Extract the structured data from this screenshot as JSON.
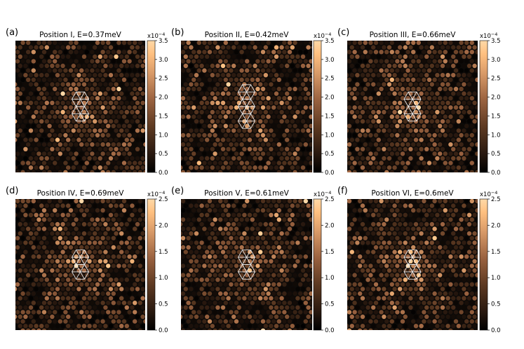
{
  "figure_title": "",
  "colorbar_multiplier": "x10",
  "colorbar_exponent": "−4",
  "colors": {
    "background": "#ffffff",
    "map_dark": "#0d0a08",
    "colormap": [
      "#000000",
      "#2b1a10",
      "#5e3a22",
      "#9a6240",
      "#d89a68",
      "#ffc080",
      "#ffd9a8"
    ]
  },
  "chart_data": [
    {
      "type": "heatmap",
      "panel_label": "(a)",
      "title": "Position I,  E=0.37meV",
      "zlim": [
        0.0,
        3.5
      ],
      "colorbar_ticks": [
        "0.0",
        "0.5",
        "1.0",
        "1.5",
        "2.0",
        "2.5",
        "3.0",
        "3.5"
      ],
      "pattern": "hexagonal lattice LDOS, bright six-fold star around center",
      "overlay": "hexagon-triangle stack (2 cells)"
    },
    {
      "type": "heatmap",
      "panel_label": "(b)",
      "title": "Position II,  E=0.42meV",
      "zlim": [
        0.0,
        3.5
      ],
      "colorbar_ticks": [
        "0.0",
        "0.5",
        "1.0",
        "1.5",
        "2.0",
        "2.5",
        "3.0",
        "3.5"
      ],
      "pattern": "hexagonal lattice LDOS, bright center",
      "overlay": "hexagon-triangle stack (3 cells)"
    },
    {
      "type": "heatmap",
      "panel_label": "(c)",
      "title": "Position III,  E=0.66meV",
      "zlim": [
        0.0,
        3.5
      ],
      "colorbar_ticks": [
        "0.0",
        "0.5",
        "1.0",
        "1.5",
        "2.0",
        "2.5",
        "3.0",
        "3.5"
      ],
      "pattern": "hexagonal lattice LDOS, bright center",
      "overlay": "hexagon-triangle stack (2 cells)"
    },
    {
      "type": "heatmap",
      "panel_label": "(d)",
      "title": "Position IV,  E=0.69meV",
      "zlim": [
        0.0,
        2.5
      ],
      "colorbar_ticks": [
        "0.0",
        "0.5",
        "1.0",
        "1.5",
        "2.0",
        "2.5"
      ],
      "pattern": "hexagonal lattice LDOS, bright center",
      "overlay": "hexagon-triangle stack (2 cells)"
    },
    {
      "type": "heatmap",
      "panel_label": "(e)",
      "title": "Position V,  E=0.61meV",
      "zlim": [
        0.0,
        2.5
      ],
      "colorbar_ticks": [
        "0.0",
        "0.5",
        "1.0",
        "1.5",
        "2.0",
        "2.5"
      ],
      "pattern": "hexagonal lattice LDOS, bright center",
      "overlay": "hexagon-triangle stack (2 cells)"
    },
    {
      "type": "heatmap",
      "panel_label": "(f)",
      "title": "Position VI,  E=0.6meV",
      "zlim": [
        0.0,
        2.5
      ],
      "colorbar_ticks": [
        "0.0",
        "0.5",
        "1.0",
        "1.5",
        "2.0",
        "2.5"
      ],
      "pattern": "hexagonal lattice LDOS, bright center",
      "overlay": "hexagon-triangle stack (2 cells)"
    }
  ]
}
